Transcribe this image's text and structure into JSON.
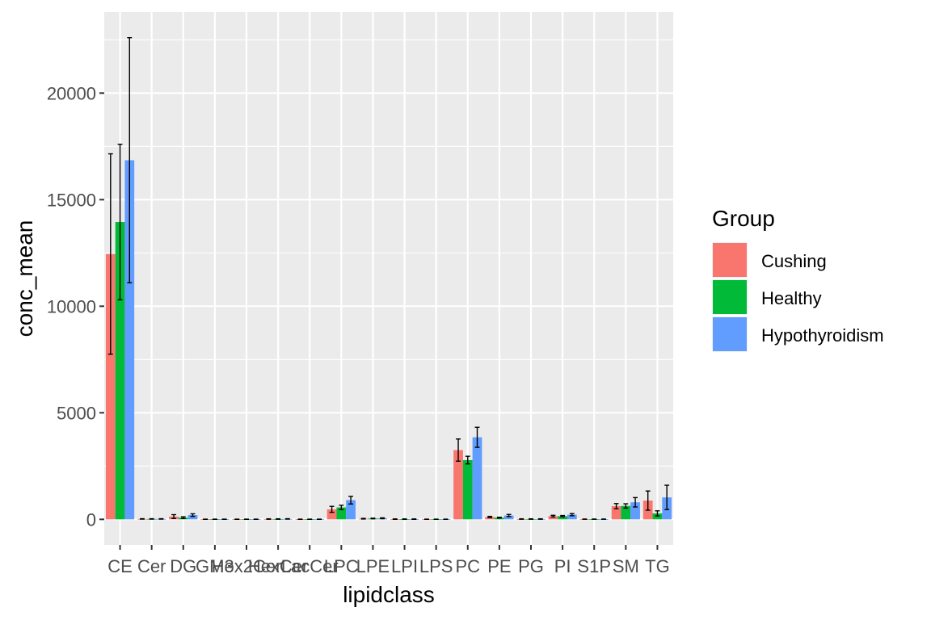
{
  "chart_data": {
    "type": "bar",
    "xlabel": "lipidclass",
    "ylabel": "conc_mean",
    "ylim": [
      -1200,
      23800
    ],
    "yticks": [
      0,
      5000,
      10000,
      15000,
      20000
    ],
    "ytick_labels": [
      "0",
      "5000",
      "10000",
      "15000",
      "20000"
    ],
    "categories": [
      "CE",
      "Cer",
      "DG",
      "GM3",
      "Hex2Cer",
      "HexCer",
      "LacCer",
      "LPC",
      "LPE",
      "LPI",
      "LPS",
      "PC",
      "PE",
      "PG",
      "PI",
      "S1P",
      "SM",
      "TG"
    ],
    "legend": {
      "title": "Group",
      "position": "right"
    },
    "grid": true,
    "background": "#EBEBEB",
    "series": [
      {
        "name": "Cushing",
        "color": "#F8766D",
        "values": [
          12450,
          20,
          130,
          5,
          5,
          15,
          5,
          470,
          30,
          10,
          5,
          3250,
          110,
          15,
          150,
          10,
          620,
          880
        ],
        "err": [
          4700,
          10,
          90,
          5,
          5,
          10,
          5,
          140,
          15,
          10,
          5,
          520,
          30,
          10,
          40,
          5,
          120,
          450
        ]
      },
      {
        "name": "Healthy",
        "color": "#00BA38",
        "values": [
          13950,
          20,
          80,
          5,
          5,
          15,
          5,
          560,
          40,
          10,
          5,
          2780,
          80,
          15,
          150,
          10,
          630,
          280
        ],
        "err": [
          3650,
          10,
          40,
          5,
          5,
          10,
          5,
          100,
          15,
          10,
          5,
          180,
          20,
          10,
          30,
          5,
          100,
          120
        ]
      },
      {
        "name": "Hypothyroidism",
        "color": "#619CFF",
        "values": [
          16850,
          20,
          200,
          5,
          5,
          20,
          5,
          900,
          50,
          10,
          5,
          3850,
          180,
          15,
          220,
          10,
          800,
          1030
        ],
        "err": [
          5750,
          10,
          60,
          5,
          5,
          10,
          5,
          180,
          20,
          10,
          5,
          470,
          50,
          10,
          50,
          5,
          220,
          570
        ]
      }
    ]
  }
}
